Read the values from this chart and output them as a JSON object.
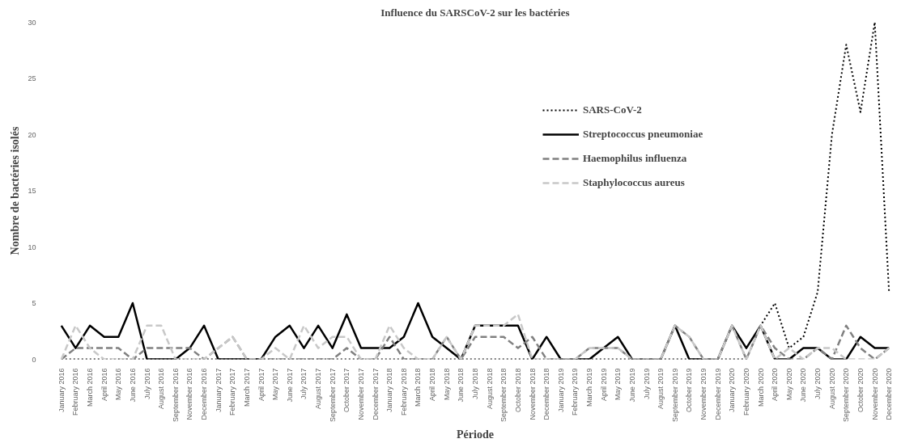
{
  "chart_data": {
    "type": "line",
    "title": "Influence du SARSCoV-2 sur les bactéries",
    "xlabel": "Période",
    "ylabel": "Nombre de bactéries isolés",
    "categories": [
      "January 2016",
      "February 2016",
      "March 2016",
      "April 2016",
      "May 2016",
      "June 2016",
      "July 2016",
      "August 2016",
      "September 2016",
      "November 2016",
      "December 2016",
      "January 2017",
      "February 2017",
      "March 2017",
      "April 2017",
      "May 2017",
      "June 2017",
      "July 2017",
      "August 2017",
      "September 2017",
      "October 2017",
      "November 2017",
      "December 2017",
      "January 2018",
      "February 2018",
      "March 2018",
      "April 2018",
      "May 2018",
      "June 2018",
      "July 2018",
      "August 2018",
      "September 2018",
      "October 2018",
      "November 2018",
      "December 2018",
      "January 2019",
      "February 2019",
      "March 2019",
      "April 2019",
      "May 2019",
      "June 2019",
      "July 2019",
      "August 2019",
      "September 2019",
      "October 2019",
      "November 2019",
      "December 2019",
      "January 2020",
      "February 2020",
      "March 2020",
      "April 2020",
      "May 2020",
      "June 2020",
      "July 2020",
      "August 2020",
      "September 2020",
      "October 2020",
      "November 2020",
      "December 2020"
    ],
    "series": [
      {
        "name": "SARS-CoV-2",
        "color": "#000000",
        "line_style": "dotted",
        "values": [
          0,
          0,
          0,
          0,
          0,
          0,
          0,
          0,
          0,
          0,
          0,
          0,
          0,
          0,
          0,
          0,
          0,
          0,
          0,
          0,
          0,
          0,
          0,
          0,
          0,
          0,
          0,
          0,
          0,
          0,
          0,
          0,
          0,
          0,
          0,
          0,
          0,
          0,
          0,
          0,
          0,
          0,
          0,
          0,
          0,
          0,
          0,
          0,
          0,
          3,
          5,
          1,
          2,
          6,
          20,
          28,
          22,
          30,
          6
        ]
      },
      {
        "name": "Streptococcus pneumoniae",
        "color": "#000000",
        "line_style": "solid",
        "values": [
          3,
          1,
          3,
          2,
          2,
          5,
          0,
          0,
          0,
          1,
          3,
          0,
          0,
          0,
          0,
          2,
          3,
          1,
          3,
          1,
          4,
          1,
          1,
          1,
          2,
          5,
          2,
          1,
          0,
          3,
          3,
          3,
          3,
          0,
          2,
          0,
          0,
          0,
          1,
          2,
          0,
          0,
          0,
          3,
          0,
          0,
          0,
          3,
          1,
          3,
          0,
          0,
          1,
          1,
          0,
          0,
          2,
          1,
          1
        ]
      },
      {
        "name": "Haemophilus influenza",
        "color": "#808080",
        "line_style": "dashed",
        "values": [
          0,
          1,
          1,
          1,
          1,
          0,
          1,
          1,
          1,
          1,
          0,
          1,
          2,
          0,
          0,
          0,
          0,
          0,
          0,
          0,
          1,
          0,
          0,
          2,
          0,
          0,
          0,
          2,
          0,
          2,
          2,
          2,
          1,
          2,
          0,
          0,
          0,
          1,
          1,
          1,
          0,
          0,
          0,
          3,
          2,
          0,
          0,
          3,
          0,
          3,
          1,
          0,
          0,
          1,
          0,
          3,
          1,
          0,
          1
        ]
      },
      {
        "name": "Staphylococcus aureus",
        "color": "#c8c8c8",
        "line_style": "dashed",
        "values": [
          0,
          3,
          1,
          0,
          0,
          0,
          3,
          3,
          0,
          0,
          0,
          1,
          2,
          0,
          0,
          1,
          0,
          3,
          1,
          2,
          2,
          0,
          0,
          3,
          1,
          0,
          0,
          2,
          0,
          3,
          3,
          3,
          4,
          0,
          0,
          0,
          0,
          1,
          1,
          1,
          0,
          0,
          0,
          3,
          2,
          0,
          0,
          3,
          0,
          3,
          0,
          1,
          0,
          1,
          1,
          0,
          0,
          0,
          1
        ]
      }
    ],
    "ylim": [
      0,
      30
    ],
    "yticks": [
      0,
      5,
      10,
      15,
      20,
      25,
      30
    ],
    "grid": false,
    "legend": "top right",
    "marker": "none"
  }
}
